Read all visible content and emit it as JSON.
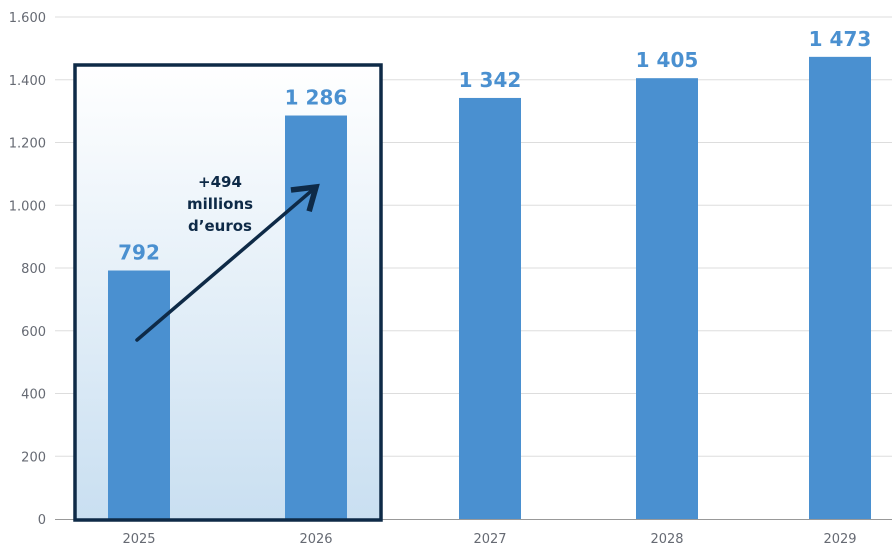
{
  "chart_data": {
    "type": "bar",
    "categories": [
      "2025",
      "2026",
      "2027",
      "2028",
      "2029"
    ],
    "values": [
      792,
      1286,
      1342,
      1405,
      1473
    ],
    "value_labels": [
      "792",
      "1 286",
      "1 342",
      "1 405",
      "1 473"
    ],
    "yticks": [
      0,
      200,
      400,
      600,
      800,
      1000,
      1200,
      1400,
      1600
    ],
    "ytick_labels": [
      "0",
      "200",
      "400",
      "600",
      "800",
      "1.000",
      "1.200",
      "1.400",
      "1.600"
    ],
    "ylim": [
      0,
      1600
    ],
    "grid": true,
    "title": "",
    "xlabel": "",
    "ylabel": "",
    "highlight": {
      "categories": [
        "2025",
        "2026"
      ],
      "annotation_lines": [
        "+494",
        "millions",
        "d’euros"
      ]
    },
    "colors": {
      "bar": "#4a90d0",
      "value_label": "#4a90d0",
      "highlight_border": "#0e2a47",
      "highlight_fill_top": "#ffffff",
      "highlight_fill_bottom": "#c9dff1",
      "arrow": "#0e2a47",
      "grid": "#dddddd",
      "axis": "#999999"
    }
  }
}
